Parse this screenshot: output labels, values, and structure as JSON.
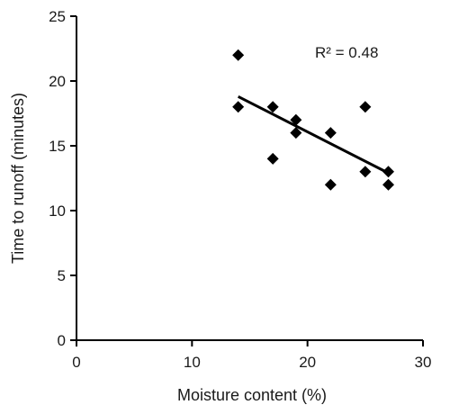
{
  "chart_data": {
    "type": "scatter",
    "title": "",
    "xlabel": "Moisture content (%)",
    "ylabel": "Time to runoff (minutes)",
    "xlim": [
      0,
      30
    ],
    "ylim": [
      0,
      25
    ],
    "x_ticks": [
      0,
      10,
      20,
      30
    ],
    "y_ticks": [
      0,
      5,
      10,
      15,
      20,
      25
    ],
    "x_tick_labels": [
      "0",
      "10",
      "20",
      "30"
    ],
    "y_tick_labels": [
      "0",
      "5",
      "10",
      "15",
      "20",
      "25"
    ],
    "grid": false,
    "legend": "none",
    "marker": "diamond",
    "marker_color": "#000000",
    "points": [
      {
        "x": 14,
        "y": 22
      },
      {
        "x": 14,
        "y": 18
      },
      {
        "x": 17,
        "y": 18
      },
      {
        "x": 17,
        "y": 14
      },
      {
        "x": 19,
        "y": 17
      },
      {
        "x": 19,
        "y": 16
      },
      {
        "x": 22,
        "y": 16
      },
      {
        "x": 22,
        "y": 12
      },
      {
        "x": 25,
        "y": 18
      },
      {
        "x": 25,
        "y": 13
      },
      {
        "x": 27,
        "y": 13
      },
      {
        "x": 27,
        "y": 12
      }
    ],
    "trendline": {
      "type": "linear",
      "x": [
        14,
        27
      ],
      "y": [
        18.8,
        12.9
      ]
    },
    "annotation": "R² = 0.48"
  }
}
